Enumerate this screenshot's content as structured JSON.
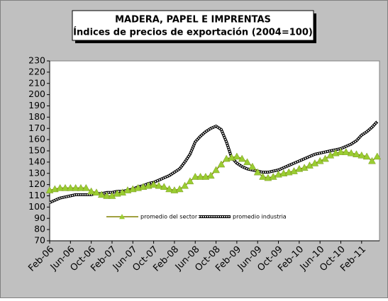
{
  "chart_data": {
    "type": "line",
    "title": "MADERA, PAPEL E IMPRENTAS",
    "subtitle": "Índices de precios de exportación (2004=100)",
    "categories": [
      "Feb-06",
      null,
      null,
      null,
      "Jun-06",
      null,
      null,
      null,
      "Oct-06",
      null,
      null,
      null,
      "Feb-07",
      null,
      null,
      null,
      "Jun-07",
      null,
      null,
      null,
      "Oct-07",
      null,
      null,
      null,
      "Feb-08",
      null,
      null,
      null,
      "Jun-08",
      null,
      null,
      null,
      "Oct-08",
      null,
      null,
      null,
      "Feb-09",
      null,
      null,
      null,
      "Jun-09",
      null,
      null,
      null,
      "Oct-09",
      null,
      null,
      null,
      "Feb-10",
      null,
      null,
      null,
      "Jun-10",
      null,
      null,
      null,
      "Oct-10",
      null,
      null,
      null,
      "Feb-11",
      null,
      null,
      null
    ],
    "series": [
      {
        "name": "promedio del sector",
        "color": "#9acd32",
        "values": [
          115,
          116,
          117,
          117,
          117,
          117,
          117,
          117,
          114,
          113,
          111,
          110,
          110,
          112,
          113,
          115,
          116,
          117,
          118,
          119,
          120,
          119,
          118,
          116,
          115,
          116,
          119,
          123,
          127,
          127,
          127,
          128,
          133,
          138,
          143,
          144,
          145,
          143,
          140,
          136,
          131,
          127,
          126,
          127,
          129,
          130,
          131,
          132,
          134,
          135,
          137,
          139,
          141,
          143,
          146,
          148,
          149,
          149,
          148,
          147,
          146,
          145,
          141,
          145
        ]
      },
      {
        "name": "promedio industria",
        "color": "#000000",
        "values": [
          104,
          106,
          108,
          109,
          110,
          111,
          111,
          111,
          111,
          112,
          112,
          113,
          113,
          114,
          114,
          115,
          116,
          118,
          119,
          121,
          122,
          124,
          126,
          128,
          131,
          134,
          140,
          147,
          158,
          163,
          167,
          170,
          172,
          169,
          158,
          144,
          139,
          136,
          134,
          133,
          132,
          131,
          131,
          132,
          133,
          135,
          137,
          139,
          141,
          143,
          145,
          147,
          148,
          149,
          150,
          151,
          152,
          154,
          156,
          159,
          164,
          167,
          171,
          176
        ]
      }
    ],
    "ylim": [
      70,
      230
    ],
    "yticks": [
      70,
      80,
      90,
      100,
      110,
      120,
      130,
      140,
      150,
      160,
      170,
      180,
      190,
      200,
      210,
      220,
      230
    ],
    "grid": false
  }
}
